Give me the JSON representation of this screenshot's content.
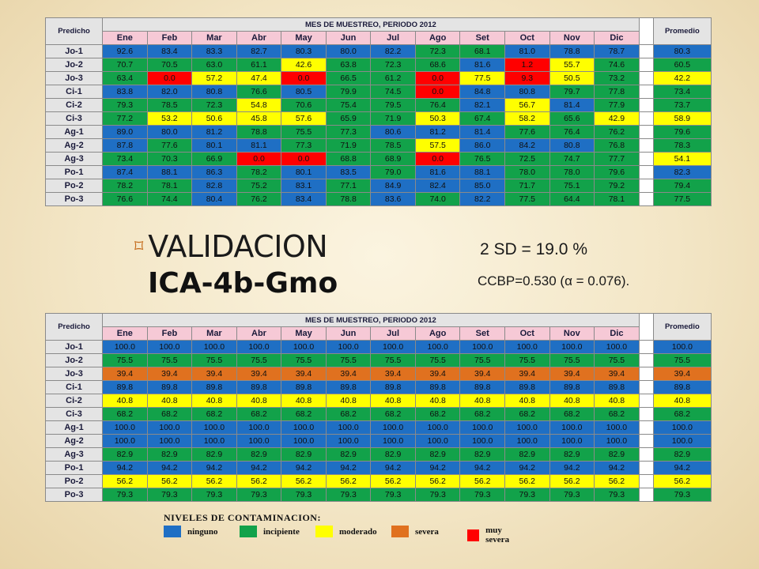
{
  "tables": [
    {
      "header_left": "Predicho",
      "header_super": "MES DE MUESTREO, PERIODO 2012",
      "header_right": "Promedio",
      "months": [
        "Ene",
        "Feb",
        "Mar",
        "Abr",
        "May",
        "Jun",
        "Jul",
        "Ago",
        "Set",
        "Oct",
        "Nov",
        "Dic"
      ],
      "rows": [
        {
          "label": "Jo-1",
          "values": [
            "92.6",
            "83.4",
            "83.3",
            "82.7",
            "80.3",
            "80.0",
            "82.2",
            "72.3",
            "68.1",
            "81.0",
            "78.8",
            "78.7"
          ],
          "colors": [
            "blue",
            "blue",
            "blue",
            "blue",
            "blue",
            "blue",
            "blue",
            "green",
            "green",
            "blue",
            "blue",
            "blue"
          ],
          "avg": "80.3",
          "avg_color": "blue"
        },
        {
          "label": "Jo-2",
          "values": [
            "70.7",
            "70.5",
            "63.0",
            "61.1",
            "42.6",
            "63.8",
            "72.3",
            "68.6",
            "81.6",
            "1.2",
            "55.7",
            "74.6"
          ],
          "colors": [
            "green",
            "green",
            "green",
            "green",
            "yellow",
            "green",
            "green",
            "green",
            "blue",
            "red",
            "yellow",
            "green"
          ],
          "avg": "60.5",
          "avg_color": "green"
        },
        {
          "label": "Jo-3",
          "values": [
            "63.4",
            "0.0",
            "57.2",
            "47.4",
            "0.0",
            "66.5",
            "61.2",
            "0.0",
            "77.5",
            "9.3",
            "50.5",
            "73.2"
          ],
          "colors": [
            "green",
            "red",
            "yellow",
            "yellow",
            "red",
            "green",
            "green",
            "red",
            "yellow",
            "red",
            "yellow",
            "green"
          ],
          "avg": "42.2",
          "avg_color": "yellow"
        },
        {
          "label": "Ci-1",
          "values": [
            "83.8",
            "82.0",
            "80.8",
            "76.6",
            "80.5",
            "79.9",
            "74.5",
            "0.0",
            "84.8",
            "80.8",
            "79.7",
            "77.8"
          ],
          "colors": [
            "blue",
            "blue",
            "blue",
            "green",
            "blue",
            "green",
            "green",
            "red",
            "blue",
            "blue",
            "green",
            "green"
          ],
          "avg": "73.4",
          "avg_color": "green"
        },
        {
          "label": "Ci-2",
          "values": [
            "79.3",
            "78.5",
            "72.3",
            "54.8",
            "70.6",
            "75.4",
            "79.5",
            "76.4",
            "82.1",
            "56.7",
            "81.4",
            "77.9"
          ],
          "colors": [
            "green",
            "green",
            "green",
            "yellow",
            "green",
            "green",
            "green",
            "green",
            "blue",
            "yellow",
            "blue",
            "green"
          ],
          "avg": "73.7",
          "avg_color": "green"
        },
        {
          "label": "Ci-3",
          "values": [
            "77.2",
            "53.2",
            "50.6",
            "45.8",
            "57.6",
            "65.9",
            "71.9",
            "50.3",
            "67.4",
            "58.2",
            "65.6",
            "42.9"
          ],
          "colors": [
            "green",
            "yellow",
            "yellow",
            "yellow",
            "yellow",
            "green",
            "green",
            "yellow",
            "green",
            "yellow",
            "green",
            "yellow"
          ],
          "avg": "58.9",
          "avg_color": "yellow"
        },
        {
          "label": "Ag-1",
          "values": [
            "89.0",
            "80.0",
            "81.2",
            "78.8",
            "75.5",
            "77.3",
            "80.6",
            "81.2",
            "81.4",
            "77.6",
            "76.4",
            "76.2"
          ],
          "colors": [
            "blue",
            "blue",
            "blue",
            "green",
            "green",
            "green",
            "blue",
            "blue",
            "blue",
            "green",
            "green",
            "green"
          ],
          "avg": "79.6",
          "avg_color": "green"
        },
        {
          "label": "Ag-2",
          "values": [
            "87.8",
            "77.6",
            "80.1",
            "81.1",
            "77.3",
            "71.9",
            "78.5",
            "57.5",
            "86.0",
            "84.2",
            "80.8",
            "76.8"
          ],
          "colors": [
            "blue",
            "green",
            "blue",
            "blue",
            "green",
            "green",
            "green",
            "yellow",
            "blue",
            "blue",
            "blue",
            "green"
          ],
          "avg": "78.3",
          "avg_color": "green"
        },
        {
          "label": "Ag-3",
          "values": [
            "73.4",
            "70.3",
            "66.9",
            "0.0",
            "0.0",
            "68.8",
            "68.9",
            "0.0",
            "76.5",
            "72.5",
            "74.7",
            "77.7"
          ],
          "colors": [
            "green",
            "green",
            "green",
            "red",
            "red",
            "green",
            "green",
            "red",
            "green",
            "green",
            "green",
            "green"
          ],
          "avg": "54.1",
          "avg_color": "yellow"
        },
        {
          "label": "Po-1",
          "values": [
            "87.4",
            "88.1",
            "86.3",
            "78.2",
            "80.1",
            "83.5",
            "79.0",
            "81.6",
            "88.1",
            "78.0",
            "78.0",
            "79.6"
          ],
          "colors": [
            "blue",
            "blue",
            "blue",
            "green",
            "blue",
            "blue",
            "green",
            "blue",
            "blue",
            "green",
            "green",
            "green"
          ],
          "avg": "82.3",
          "avg_color": "blue"
        },
        {
          "label": "Po-2",
          "values": [
            "78.2",
            "78.1",
            "82.8",
            "75.2",
            "83.1",
            "77.1",
            "84.9",
            "82.4",
            "85.0",
            "71.7",
            "75.1",
            "79.2"
          ],
          "colors": [
            "green",
            "green",
            "blue",
            "green",
            "blue",
            "green",
            "blue",
            "blue",
            "blue",
            "green",
            "green",
            "green"
          ],
          "avg": "79.4",
          "avg_color": "green"
        },
        {
          "label": "Po-3",
          "values": [
            "76.6",
            "74.4",
            "80.4",
            "76.2",
            "83.4",
            "78.8",
            "83.6",
            "74.0",
            "82.2",
            "77.5",
            "64.4",
            "78.1"
          ],
          "colors": [
            "green",
            "green",
            "blue",
            "green",
            "blue",
            "green",
            "blue",
            "green",
            "blue",
            "green",
            "green",
            "green"
          ],
          "avg": "77.5",
          "avg_color": "green"
        }
      ]
    },
    {
      "header_left": "Predicho",
      "header_super": "MES DE MUESTREO, PERIODO 2012",
      "header_right": "Promedio",
      "months": [
        "Ene",
        "Feb",
        "Mar",
        "Abr",
        "May",
        "Jun",
        "Jul",
        "Ago",
        "Set",
        "Oct",
        "Nov",
        "Dic"
      ],
      "rows": [
        {
          "label": "Jo-1",
          "values": [
            "100.0",
            "100.0",
            "100.0",
            "100.0",
            "100.0",
            "100.0",
            "100.0",
            "100.0",
            "100.0",
            "100.0",
            "100.0",
            "100.0"
          ],
          "colors": [
            "blue",
            "blue",
            "blue",
            "blue",
            "blue",
            "blue",
            "blue",
            "blue",
            "blue",
            "blue",
            "blue",
            "blue"
          ],
          "avg": "100.0",
          "avg_color": "blue"
        },
        {
          "label": "Jo-2",
          "values": [
            "75.5",
            "75.5",
            "75.5",
            "75.5",
            "75.5",
            "75.5",
            "75.5",
            "75.5",
            "75.5",
            "75.5",
            "75.5",
            "75.5"
          ],
          "colors": [
            "green",
            "green",
            "green",
            "green",
            "green",
            "green",
            "green",
            "green",
            "green",
            "green",
            "green",
            "green"
          ],
          "avg": "75.5",
          "avg_color": "green"
        },
        {
          "label": "Jo-3",
          "values": [
            "39.4",
            "39.4",
            "39.4",
            "39.4",
            "39.4",
            "39.4",
            "39.4",
            "39.4",
            "39.4",
            "39.4",
            "39.4",
            "39.4"
          ],
          "colors": [
            "orange",
            "orange",
            "orange",
            "orange",
            "orange",
            "orange",
            "orange",
            "orange",
            "orange",
            "orange",
            "orange",
            "orange"
          ],
          "avg": "39.4",
          "avg_color": "orange"
        },
        {
          "label": "Ci-1",
          "values": [
            "89.8",
            "89.8",
            "89.8",
            "89.8",
            "89.8",
            "89.8",
            "89.8",
            "89.8",
            "89.8",
            "89.8",
            "89.8",
            "89.8"
          ],
          "colors": [
            "blue",
            "blue",
            "blue",
            "blue",
            "blue",
            "blue",
            "blue",
            "blue",
            "blue",
            "blue",
            "blue",
            "blue"
          ],
          "avg": "89.8",
          "avg_color": "blue"
        },
        {
          "label": "Ci-2",
          "values": [
            "40.8",
            "40.8",
            "40.8",
            "40.8",
            "40.8",
            "40.8",
            "40.8",
            "40.8",
            "40.8",
            "40.8",
            "40.8",
            "40.8"
          ],
          "colors": [
            "yellow",
            "yellow",
            "yellow",
            "yellow",
            "yellow",
            "yellow",
            "yellow",
            "yellow",
            "yellow",
            "yellow",
            "yellow",
            "yellow"
          ],
          "avg": "40.8",
          "avg_color": "yellow"
        },
        {
          "label": "Ci-3",
          "values": [
            "68.2",
            "68.2",
            "68.2",
            "68.2",
            "68.2",
            "68.2",
            "68.2",
            "68.2",
            "68.2",
            "68.2",
            "68.2",
            "68.2"
          ],
          "colors": [
            "green",
            "green",
            "green",
            "green",
            "green",
            "green",
            "green",
            "green",
            "green",
            "green",
            "green",
            "green"
          ],
          "avg": "68.2",
          "avg_color": "green"
        },
        {
          "label": "Ag-1",
          "values": [
            "100.0",
            "100.0",
            "100.0",
            "100.0",
            "100.0",
            "100.0",
            "100.0",
            "100.0",
            "100.0",
            "100.0",
            "100.0",
            "100.0"
          ],
          "colors": [
            "blue",
            "blue",
            "blue",
            "blue",
            "blue",
            "blue",
            "blue",
            "blue",
            "blue",
            "blue",
            "blue",
            "blue"
          ],
          "avg": "100.0",
          "avg_color": "blue"
        },
        {
          "label": "Ag-2",
          "values": [
            "100.0",
            "100.0",
            "100.0",
            "100.0",
            "100.0",
            "100.0",
            "100.0",
            "100.0",
            "100.0",
            "100.0",
            "100.0",
            "100.0"
          ],
          "colors": [
            "blue",
            "blue",
            "blue",
            "blue",
            "blue",
            "blue",
            "blue",
            "blue",
            "blue",
            "blue",
            "blue",
            "blue"
          ],
          "avg": "100.0",
          "avg_color": "blue"
        },
        {
          "label": "Ag-3",
          "values": [
            "82.9",
            "82.9",
            "82.9",
            "82.9",
            "82.9",
            "82.9",
            "82.9",
            "82.9",
            "82.9",
            "82.9",
            "82.9",
            "82.9"
          ],
          "colors": [
            "green",
            "green",
            "green",
            "green",
            "green",
            "green",
            "green",
            "green",
            "green",
            "green",
            "green",
            "green"
          ],
          "avg": "82.9",
          "avg_color": "green"
        },
        {
          "label": "Po-1",
          "values": [
            "94.2",
            "94.2",
            "94.2",
            "94.2",
            "94.2",
            "94.2",
            "94.2",
            "94.2",
            "94.2",
            "94.2",
            "94.2",
            "94.2"
          ],
          "colors": [
            "blue",
            "blue",
            "blue",
            "blue",
            "blue",
            "blue",
            "blue",
            "blue",
            "blue",
            "blue",
            "blue",
            "blue"
          ],
          "avg": "94.2",
          "avg_color": "blue"
        },
        {
          "label": "Po-2",
          "values": [
            "56.2",
            "56.2",
            "56.2",
            "56.2",
            "56.2",
            "56.2",
            "56.2",
            "56.2",
            "56.2",
            "56.2",
            "56.2",
            "56.2"
          ],
          "colors": [
            "yellow",
            "yellow",
            "yellow",
            "yellow",
            "yellow",
            "yellow",
            "yellow",
            "yellow",
            "yellow",
            "yellow",
            "yellow",
            "yellow"
          ],
          "avg": "56.2",
          "avg_color": "yellow"
        },
        {
          "label": "Po-3",
          "values": [
            "79.3",
            "79.3",
            "79.3",
            "79.3",
            "79.3",
            "79.3",
            "79.3",
            "79.3",
            "79.3",
            "79.3",
            "79.3",
            "79.3"
          ],
          "colors": [
            "green",
            "green",
            "green",
            "green",
            "green",
            "green",
            "green",
            "green",
            "green",
            "green",
            "green",
            "green"
          ],
          "avg": "79.3",
          "avg_color": "green"
        }
      ]
    }
  ],
  "heading": {
    "bullet_icon": "square-bullet-icon",
    "title": "VALIDACION",
    "subtitle": "ICA-4b-Gmo",
    "sd_text": "2 SD = 19.0 %",
    "ccbp_text": "CCBP=0.530 (α = 0.076)."
  },
  "legend": {
    "title": "NIVELES DE CONTAMINACION:",
    "items": [
      {
        "label": "ninguno",
        "color": "blue"
      },
      {
        "label": "incipiente",
        "color": "green"
      },
      {
        "label": "moderado",
        "color": "yellow"
      },
      {
        "label": "severa",
        "color": "orange"
      },
      {
        "label": "muy severa",
        "color": "red"
      }
    ]
  },
  "palette": {
    "blue": "#1f6fc4",
    "green": "#12a24a",
    "yellow": "#ffff00",
    "orange": "#e0711f",
    "red": "#ff0000"
  }
}
